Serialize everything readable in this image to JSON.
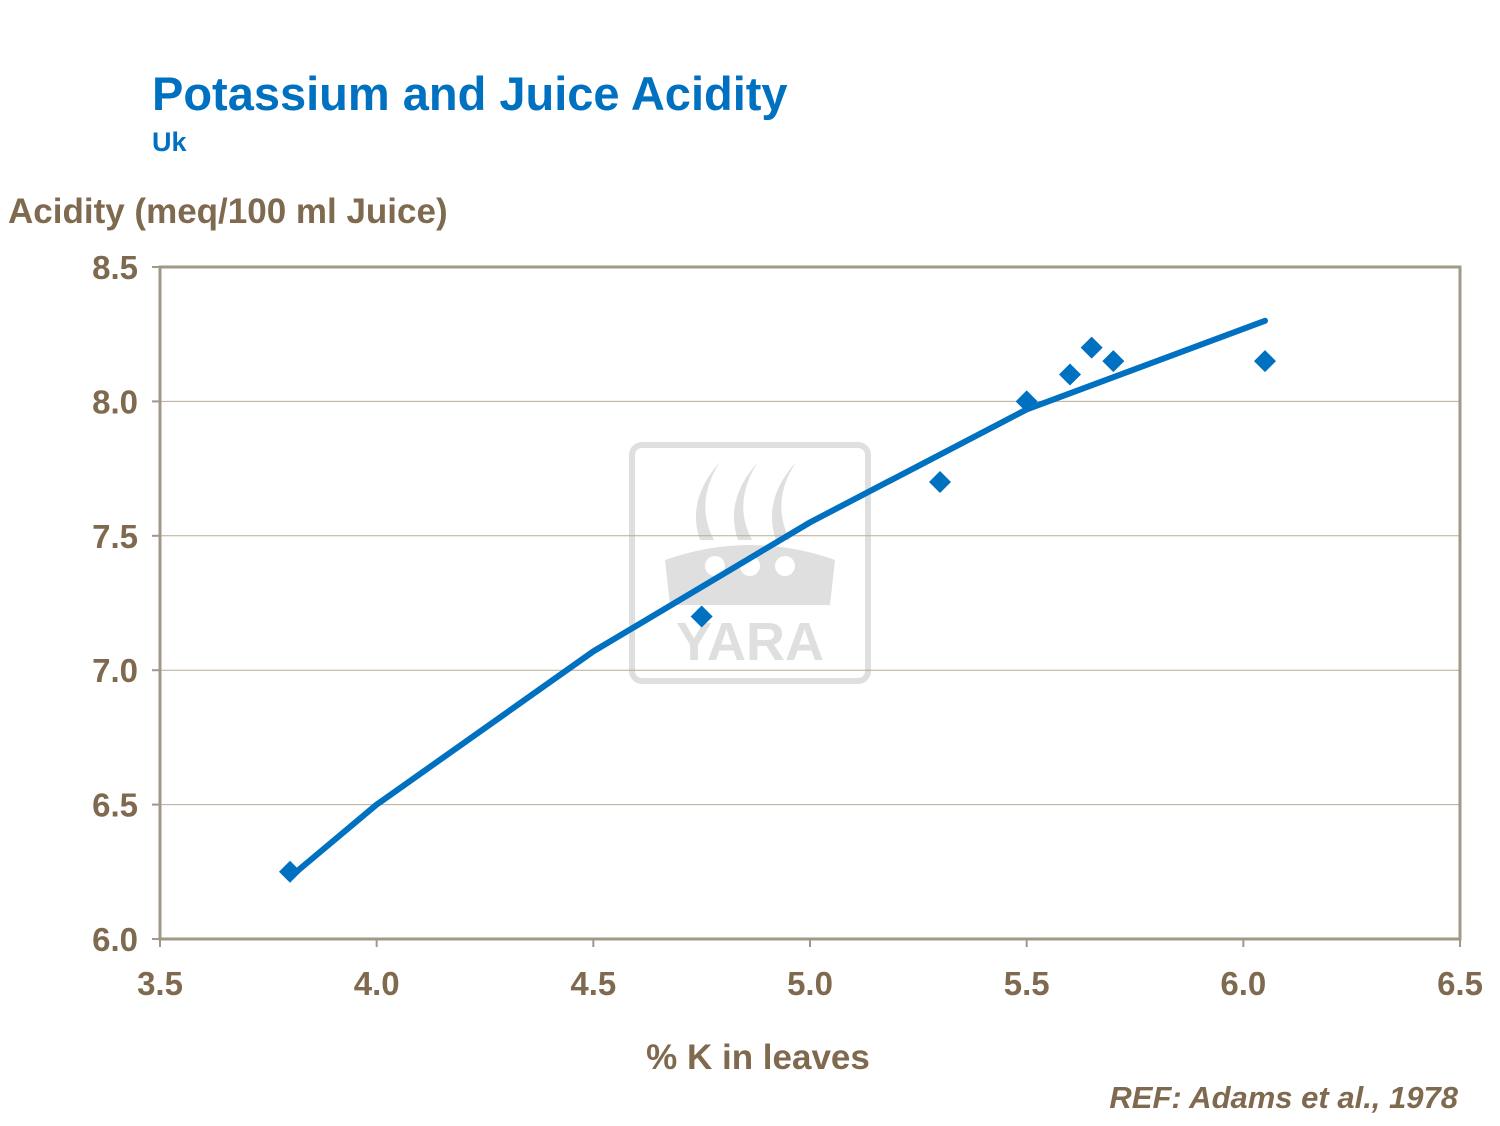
{
  "chart_data": {
    "type": "scatter",
    "title": "Potassium and Juice Acidity",
    "subtitle": "Uk",
    "xlabel": "% K in leaves",
    "ylabel": "Acidity (meq/100 ml Juice)",
    "xlim": [
      3.5,
      6.5
    ],
    "ylim": [
      6.0,
      8.5
    ],
    "xticks": [
      "3.5",
      "4.0",
      "4.5",
      "5.0",
      "5.5",
      "6.0",
      "6.5"
    ],
    "yticks": [
      "6.0",
      "6.5",
      "7.0",
      "7.5",
      "8.0",
      "8.5"
    ],
    "grid": "horizontal",
    "series": [
      {
        "marker": "diamond",
        "color": "#0070c0",
        "x": [
          3.8,
          4.75,
          5.3,
          5.5,
          5.6,
          5.65,
          5.7,
          6.05
        ],
        "y": [
          6.25,
          7.2,
          7.7,
          8.0,
          8.1,
          8.2,
          8.15,
          8.15
        ]
      }
    ],
    "trendline": {
      "color": "#0070c0",
      "x": [
        3.8,
        4.0,
        4.5,
        5.0,
        5.5,
        6.05
      ],
      "y": [
        6.23,
        6.5,
        7.07,
        7.55,
        7.97,
        8.3
      ]
    },
    "source": "REF: Adams et al., 1978"
  },
  "watermark": {
    "text": "YARA",
    "color": "#d9d9d9"
  },
  "colors": {
    "axis": "#a09888",
    "text": "#7f6a4f",
    "title": "#0070c0"
  }
}
